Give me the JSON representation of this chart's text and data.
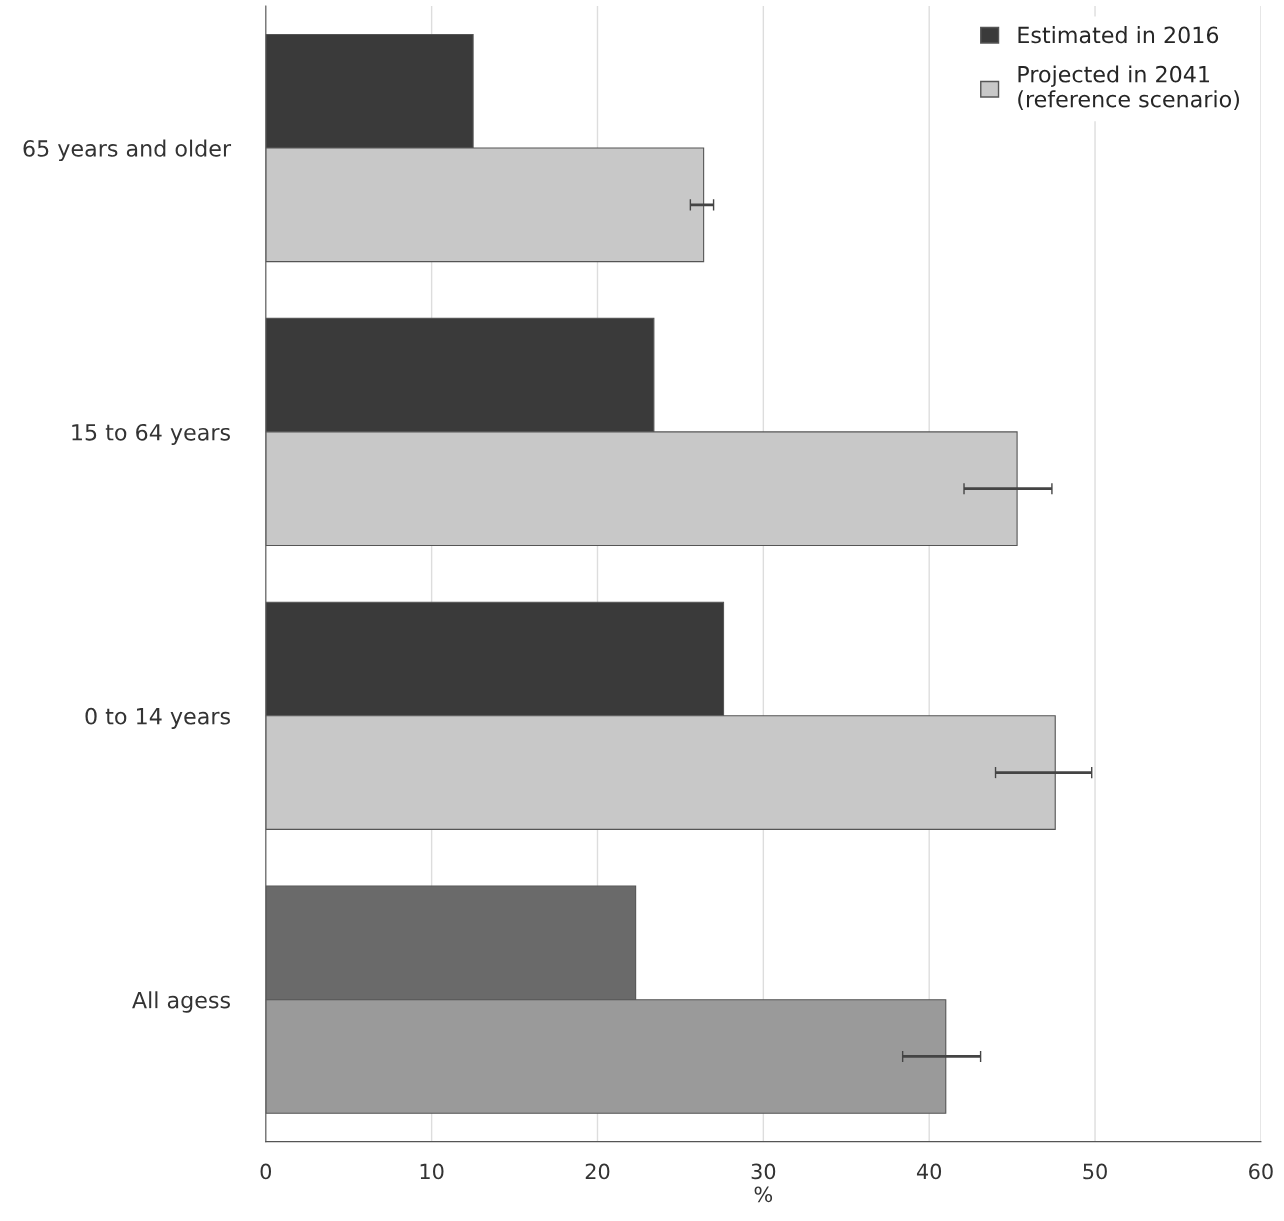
{
  "chart_data": {
    "type": "bar",
    "orientation": "horizontal",
    "xlabel": "%",
    "categories": [
      "65 years and older",
      "15 to 64 years",
      "0 to 14 years",
      "All agess"
    ],
    "series": [
      {
        "name": "Estimated in 2016",
        "color": "#3a3a3a",
        "colors": [
          "#3a3a3a",
          "#3a3a3a",
          "#3a3a3a",
          "#6a6a6a"
        ],
        "values": [
          12.5,
          23.4,
          27.6,
          22.3
        ]
      },
      {
        "name": "Projected in 2041\n(reference scenario)",
        "color": "#c8c8c8",
        "colors": [
          "#c8c8c8",
          "#c8c8c8",
          "#c8c8c8",
          "#9a9a9a"
        ],
        "values": [
          26.4,
          45.3,
          47.6,
          41.0
        ],
        "errors": [
          [
            25.6,
            27.0
          ],
          [
            42.1,
            47.4
          ],
          [
            44.0,
            49.8
          ],
          [
            38.4,
            43.1
          ]
        ]
      }
    ],
    "xlim": [
      0,
      60
    ],
    "xticks": [
      0,
      10,
      20,
      30,
      40,
      50,
      60
    ],
    "grid": "x",
    "legend": "top right"
  }
}
